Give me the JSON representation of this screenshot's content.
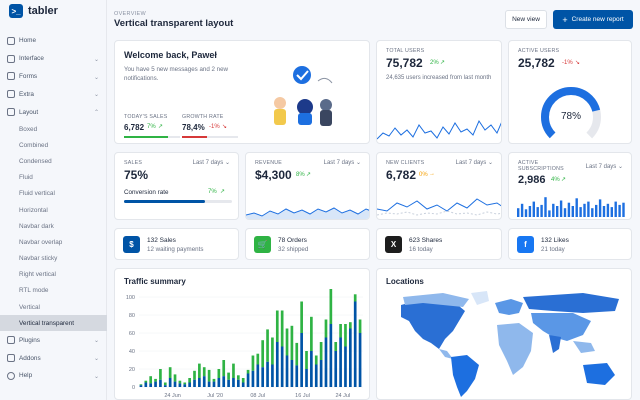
{
  "brand": {
    "name": "tabler",
    "logo_glyph": ">_"
  },
  "header": {
    "pretitle": "OVERVIEW",
    "title": "Vertical transparent layout",
    "new_view": "New view",
    "create_report": "Create new report",
    "plus": "+"
  },
  "sidebar": {
    "items": [
      {
        "label": "Home"
      },
      {
        "label": "Interface",
        "chevron": "⌄"
      },
      {
        "label": "Forms",
        "chevron": "⌄"
      },
      {
        "label": "Extra",
        "chevron": "⌄"
      },
      {
        "label": "Layout",
        "chevron": "⌃"
      }
    ],
    "layout_sub": [
      "Boxed",
      "Combined",
      "Condensed",
      "Fluid",
      "Fluid vertical",
      "Horizontal",
      "Navbar dark",
      "Navbar overlap",
      "Navbar sticky",
      "Right vertical",
      "RTL mode",
      "Vertical",
      "Vertical transparent"
    ],
    "bottom": [
      {
        "label": "Plugins",
        "chevron": "⌄"
      },
      {
        "label": "Addons",
        "chevron": "⌄"
      },
      {
        "label": "Help",
        "chevron": "⌄"
      }
    ]
  },
  "welcome": {
    "title": "Welcome back, Paweł",
    "text": "You have 5 new messages and 2 new notifications.",
    "sales_label": "TODAY'S SALES",
    "sales_value": "6,782",
    "sales_change": "7%",
    "growth_label": "GROWTH RATE",
    "growth_value": "78,4%",
    "growth_change": "-1%",
    "sales_progress": 0.78,
    "growth_progress": 0.45
  },
  "total_users": {
    "label": "TOTAL USERS",
    "value": "75,782",
    "change": "2%",
    "sub": "24,635 users increased from last month"
  },
  "active_users": {
    "label": "ACTIVE USERS",
    "value": "25,782",
    "change": "-1%",
    "gauge": "78%",
    "gauge_value": 0.78
  },
  "sales": {
    "label": "SALES",
    "period": "Last 7 days",
    "value": "75%",
    "conv_label": "Conversion rate",
    "conv_change": "7%",
    "conv_progress": 0.75
  },
  "revenue": {
    "label": "REVENUE",
    "period": "Last 7 days",
    "value": "$4,300",
    "change": "8%"
  },
  "new_clients": {
    "label": "NEW CLIENTS",
    "period": "Last 7 days",
    "value": "6,782",
    "change": "0%"
  },
  "subscriptions": {
    "label1": "ACTIVE",
    "label2": "SUBSCRIPTIONS",
    "period": "Last 7 days",
    "value": "2,986",
    "change": "4%"
  },
  "mini": [
    {
      "title": "132 Sales",
      "sub": "12 waiting payments",
      "icon": "$",
      "color": "#0054a6"
    },
    {
      "title": "78 Orders",
      "sub": "32 shipped",
      "icon": "🛒",
      "color": "#2fb344"
    },
    {
      "title": "623 Shares",
      "sub": "16 today",
      "icon": "X",
      "color": "#1d1d1d"
    },
    {
      "title": "132 Likes",
      "sub": "21 today",
      "icon": "f",
      "color": "#1877f2"
    }
  ],
  "traffic": {
    "title": "Traffic summary"
  },
  "locations": {
    "title": "Locations"
  },
  "chart_data": {
    "type": "bar",
    "yticks": [
      "0",
      "20",
      "40",
      "60",
      "80",
      "100"
    ],
    "xticks": [
      "24 Jun",
      "Jul '20",
      "08 Jul",
      "16 Jul",
      "24 Jul"
    ],
    "ylim": [
      0,
      100
    ],
    "series": [
      {
        "color": "#2fb344",
        "values": [
          1,
          2,
          8,
          3,
          12,
          3,
          12,
          8,
          3,
          2,
          5,
          10,
          16,
          10,
          13,
          3,
          10,
          18,
          8,
          16,
          5,
          5,
          4,
          17,
          12,
          30,
          36,
          30,
          35,
          40,
          30,
          38,
          25,
          35,
          20,
          38,
          10,
          20,
          20,
          40,
          10,
          15,
          25,
          7,
          8,
          15
        ]
      },
      {
        "color": "#0054a6",
        "values": [
          2,
          5,
          4,
          6,
          8,
          2,
          10,
          6,
          4,
          3,
          5,
          8,
          10,
          12,
          6,
          6,
          10,
          12,
          8,
          10,
          8,
          5,
          15,
          18,
          25,
          22,
          28,
          25,
          50,
          45,
          35,
          30,
          24,
          60,
          20,
          40,
          25,
          30,
          55,
          70,
          40,
          55,
          45,
          65,
          95,
          60
        ]
      }
    ]
  }
}
